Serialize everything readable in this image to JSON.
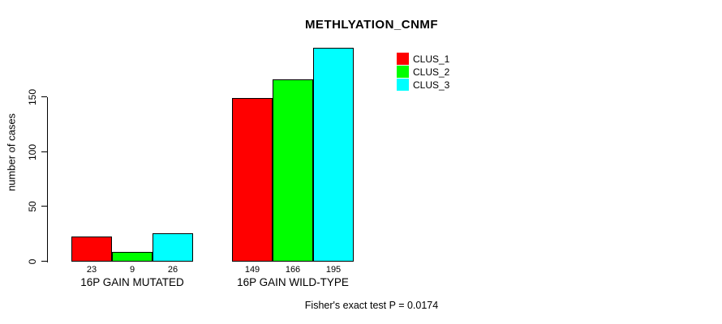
{
  "title": "METHLYATION_CNMF",
  "ylabel": "number of cases",
  "footer": "Fisher's exact test P = 0.0174",
  "chart_data": {
    "type": "bar",
    "title": "METHLYATION_CNMF",
    "xlabel": "",
    "ylabel": "number of cases",
    "categories": [
      "16P GAIN MUTATED",
      "16P GAIN WILD-TYPE"
    ],
    "series": [
      {
        "name": "CLUS_1",
        "color": "#FF0000",
        "values": [
          23,
          149
        ]
      },
      {
        "name": "CLUS_2",
        "color": "#00FF00",
        "values": [
          9,
          166
        ]
      },
      {
        "name": "CLUS_3",
        "color": "#00FFFF",
        "values": [
          26,
          195
        ]
      }
    ],
    "yticks": [
      0,
      50,
      100,
      150
    ],
    "ylim": [
      0,
      203
    ],
    "grid": false,
    "bar_borders": "#000000",
    "legend_position": "top-right",
    "value_labels_under_bars": true,
    "annotation": "Fisher's exact test P = 0.0174"
  }
}
